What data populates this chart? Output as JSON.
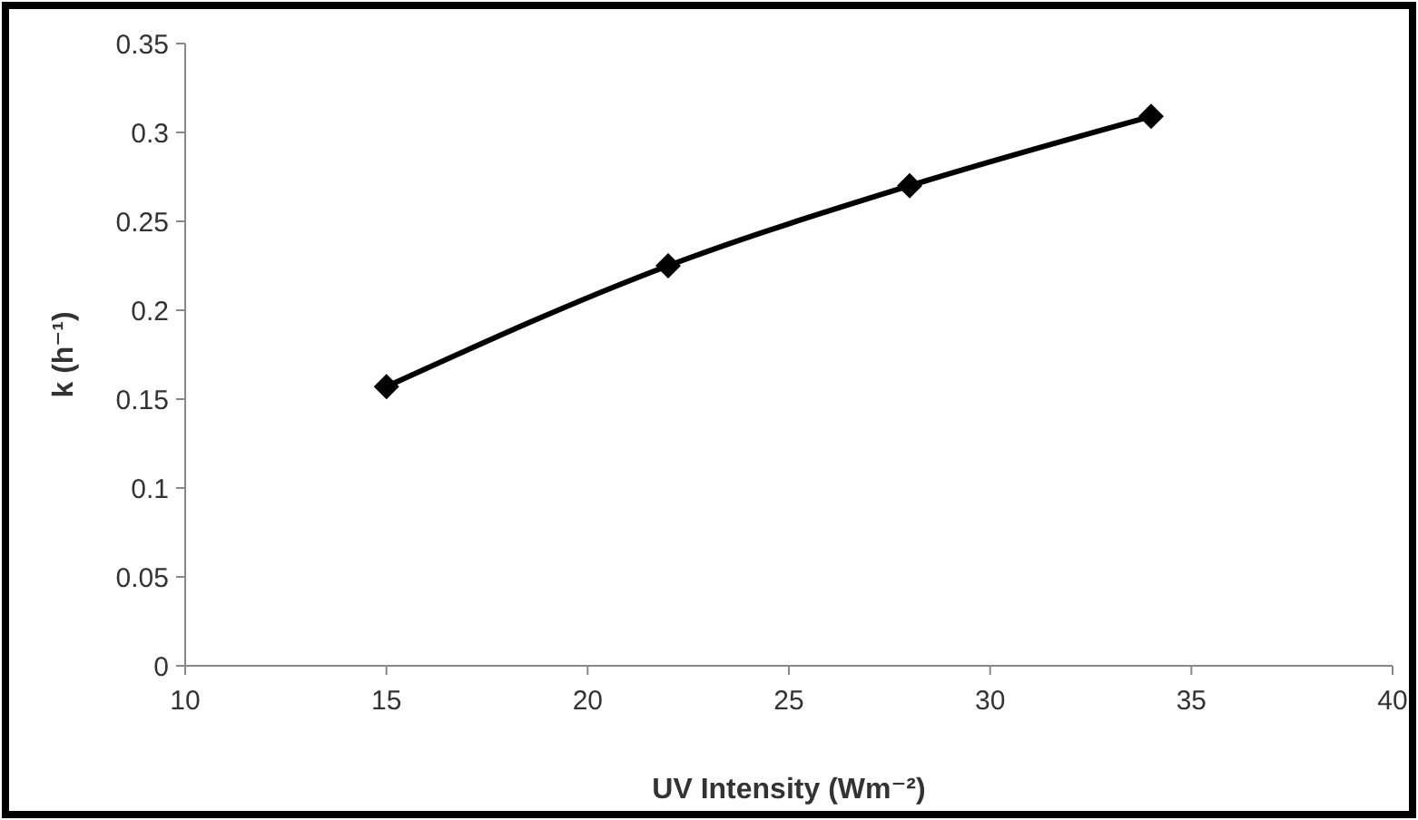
{
  "chart_data": {
    "type": "line",
    "xlabel": "UV Intensity (Wm⁻²)",
    "ylabel": "k (h⁻¹)",
    "x": [
      15,
      22,
      28,
      34
    ],
    "series": [
      {
        "color": "#000000",
        "values": [
          0.157,
          0.225,
          0.27,
          0.309
        ]
      }
    ],
    "xlim": [
      10,
      40
    ],
    "xticks": [
      10,
      15,
      20,
      25,
      30,
      35,
      40
    ],
    "ylim": [
      0,
      0.35
    ],
    "yticks": [
      {
        "value": 0,
        "label": "0"
      },
      {
        "value": 0.05,
        "label": "0.05"
      },
      {
        "value": 0.1,
        "label": "0.1"
      },
      {
        "value": 0.15,
        "label": "0.15"
      },
      {
        "value": 0.2,
        "label": "0.2"
      },
      {
        "value": 0.25,
        "label": "0.25"
      },
      {
        "value": 0.3,
        "label": "0.3"
      },
      {
        "value": 0.35,
        "label": "0.35"
      }
    ],
    "grid": false,
    "marker": "diamond",
    "line_style": "solid"
  }
}
